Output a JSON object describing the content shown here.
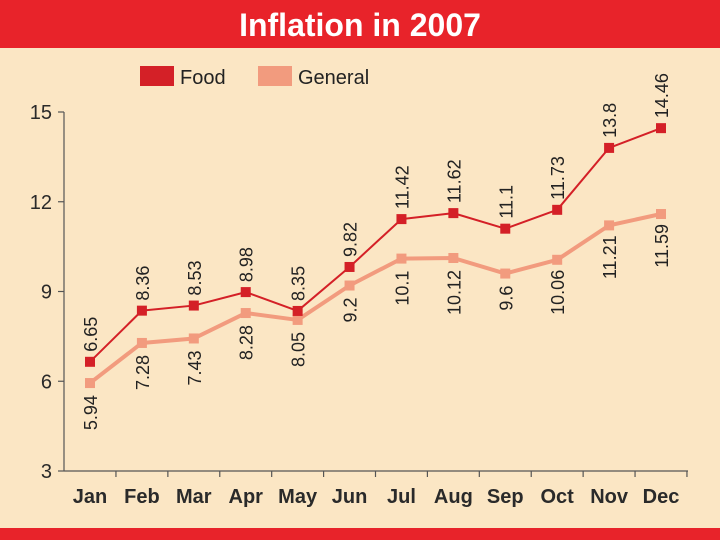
{
  "chart_data": {
    "type": "line",
    "title": "Inflation in 2007",
    "xlabel": "",
    "ylabel": "",
    "categories": [
      "Jan",
      "Feb",
      "Mar",
      "Apr",
      "May",
      "Jun",
      "Jul",
      "Aug",
      "Sep",
      "Oct",
      "Nov",
      "Dec"
    ],
    "series": [
      {
        "name": "Food",
        "color": "#d42027",
        "marker": "square",
        "values": [
          6.65,
          8.36,
          8.53,
          8.98,
          8.35,
          9.82,
          11.42,
          11.62,
          11.1,
          11.73,
          13.8,
          14.46
        ],
        "labels": [
          "6.65",
          "8.36",
          "8.53",
          "8.98",
          "8.35",
          "9.82",
          "11.42",
          "11.62",
          "11.1",
          "11.73",
          "13.8",
          "14.46"
        ]
      },
      {
        "name": "General",
        "color": "#f29b7e",
        "marker": "square",
        "values": [
          5.94,
          7.28,
          7.43,
          8.28,
          8.05,
          9.2,
          10.1,
          10.12,
          9.6,
          10.06,
          11.21,
          11.59
        ],
        "labels": [
          "5.94",
          "7.28",
          "7.43",
          "8.28",
          "8.05",
          "9.2",
          "10.1",
          "10.12",
          "9.6",
          "10.06",
          "11.21",
          "11.59"
        ]
      }
    ],
    "ylim": [
      3,
      15
    ],
    "yticks": [
      3,
      6,
      9,
      12,
      15
    ],
    "ytick_labels": [
      "3",
      "6",
      "9",
      "12",
      "15"
    ],
    "grid": false,
    "legend_position": "top-left",
    "background_color": "#fbe6c4",
    "title_bar_color": "#e8232a",
    "axis_color": "#555555"
  }
}
